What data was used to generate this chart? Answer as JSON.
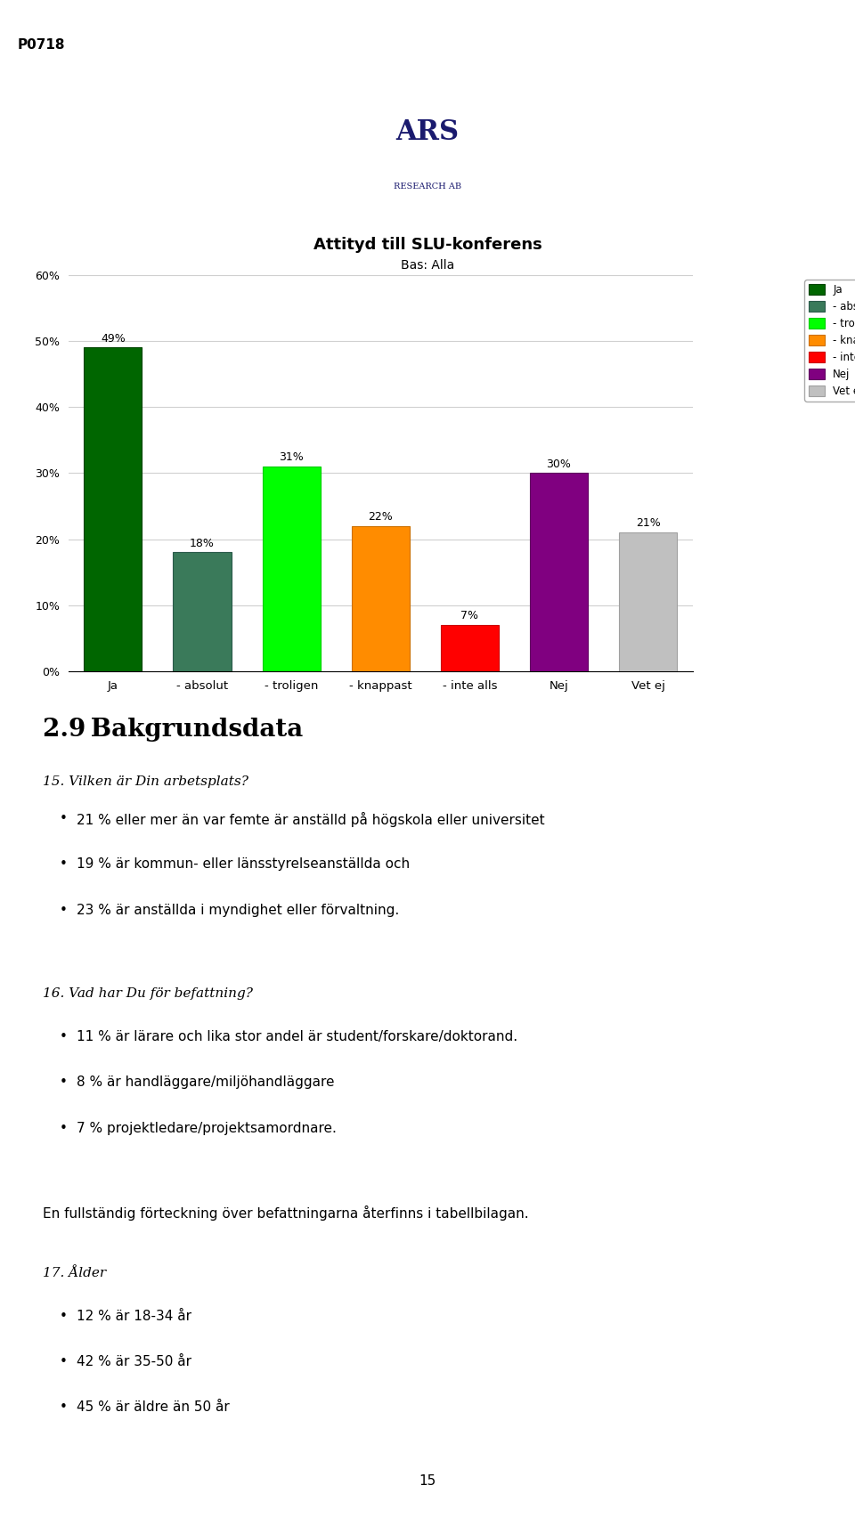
{
  "title": "Attityd till SLU-konferens",
  "subtitle": "Bas: Alla",
  "page_label": "P0718",
  "categories": [
    "Ja",
    "- absolut",
    "- troligen",
    "- knappast",
    "- inte alls",
    "Nej",
    "Vet ej"
  ],
  "values": [
    49,
    18,
    31,
    22,
    7,
    30,
    21
  ],
  "bar_colors": [
    "#006600",
    "#3a7a5a",
    "#00ff00",
    "#ff8c00",
    "#ff0000",
    "#800080",
    "#c0c0c0"
  ],
  "bar_edge_colors": [
    "#004400",
    "#2a5a4a",
    "#00cc00",
    "#cc7000",
    "#cc0000",
    "#600060",
    "#a0a0a0"
  ],
  "ylim": [
    0,
    60
  ],
  "yticks": [
    0,
    10,
    20,
    30,
    40,
    50,
    60
  ],
  "ytick_labels": [
    "0%",
    "10%",
    "20%",
    "30%",
    "40%",
    "50%",
    "60%"
  ],
  "legend_labels": [
    "Ja",
    "- absolut",
    "- troligen",
    "- knappast",
    "- inte alls",
    "Nej",
    "Vet ej"
  ],
  "legend_colors": [
    "#006600",
    "#3a7a5a",
    "#00ff00",
    "#ff8c00",
    "#ff0000",
    "#800080",
    "#c0c0c0"
  ],
  "section_title": "2.9 Bakgrundsdata",
  "q15_title": "15. Vilken är Din arbetsplats?",
  "q15_bullets": [
    "21 % eller mer än var femte är anställd på högskola eller universitet",
    "19 % är kommun- eller länsstyrelseanställda och",
    "23 % är anställda i myndighet eller förvaltning."
  ],
  "q16_title": "16. Vad har Du för befattning?",
  "q16_bullets": [
    "11 % är lärare och lika stor andel är student/forskare/doktorand.",
    "8 % är handläggare/miljöhandläggare",
    "7 % projektledare/projektsamordnare."
  ],
  "fullstandig_text": "En fullständig förteckning över befattningarna återfinns i tabellbilagan.",
  "q17_title": "17. Ålder",
  "q17_bullets": [
    "12 % är 18-34 år",
    "42 % är 35-50 år",
    "45 % är äldre än 50 år"
  ],
  "page_number": "15",
  "background_color": "#ffffff",
  "chart_bg_color": "#ffffff",
  "grid_color": "#d0d0d0",
  "bar_width": 0.65
}
